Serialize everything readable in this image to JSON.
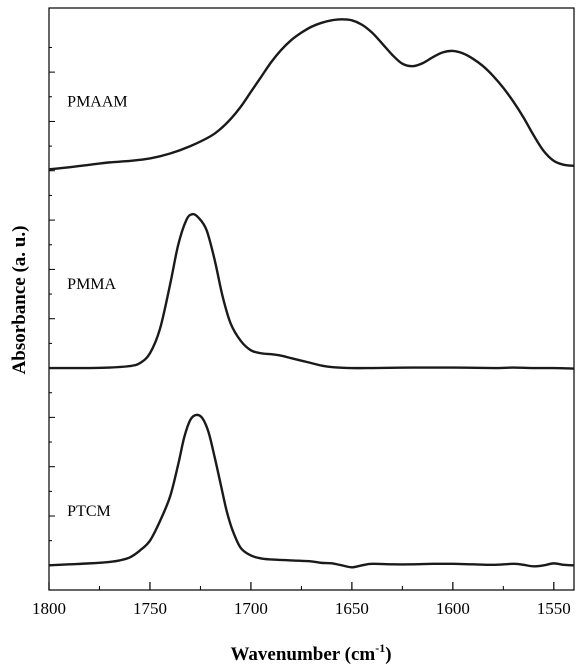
{
  "chart_data": {
    "type": "line",
    "title": "",
    "xlabel": "Wavenumber (cm",
    "xlabel_sup": "-1",
    "xlabel_suffix": ")",
    "ylabel": "Absorbance (a. u.)",
    "xlim": [
      1800,
      1540
    ],
    "x_reversed": true,
    "y_ticks_labeled": false,
    "grid": false,
    "legend": "none",
    "x_ticks": [
      1800,
      1750,
      1700,
      1650,
      1600,
      1550
    ],
    "x_tick_labels": [
      "1800",
      "1750",
      "1700",
      "1650",
      "1600",
      "1550"
    ],
    "line_color": "#1a1a1a",
    "series": [
      {
        "name": "PMAAM",
        "baseline": 0.8,
        "points": [
          [
            1800,
            0.803
          ],
          [
            1790,
            0.807
          ],
          [
            1780,
            0.812
          ],
          [
            1770,
            0.817
          ],
          [
            1760,
            0.82
          ],
          [
            1750,
            0.825
          ],
          [
            1740,
            0.835
          ],
          [
            1730,
            0.85
          ],
          [
            1720,
            0.87
          ],
          [
            1715,
            0.885
          ],
          [
            1710,
            0.905
          ],
          [
            1705,
            0.93
          ],
          [
            1700,
            0.96
          ],
          [
            1695,
            0.99
          ],
          [
            1690,
            1.02
          ],
          [
            1685,
            1.045
          ],
          [
            1680,
            1.065
          ],
          [
            1675,
            1.08
          ],
          [
            1670,
            1.092
          ],
          [
            1665,
            1.1
          ],
          [
            1660,
            1.105
          ],
          [
            1655,
            1.107
          ],
          [
            1650,
            1.105
          ],
          [
            1645,
            1.096
          ],
          [
            1640,
            1.08
          ],
          [
            1635,
            1.058
          ],
          [
            1630,
            1.035
          ],
          [
            1625,
            1.017
          ],
          [
            1620,
            1.012
          ],
          [
            1615,
            1.018
          ],
          [
            1610,
            1.03
          ],
          [
            1605,
            1.04
          ],
          [
            1600,
            1.043
          ],
          [
            1595,
            1.038
          ],
          [
            1590,
            1.027
          ],
          [
            1585,
            1.012
          ],
          [
            1580,
            0.992
          ],
          [
            1575,
            0.968
          ],
          [
            1570,
            0.94
          ],
          [
            1565,
            0.908
          ],
          [
            1560,
            0.872
          ],
          [
            1555,
            0.84
          ],
          [
            1550,
            0.82
          ],
          [
            1545,
            0.812
          ],
          [
            1540,
            0.81
          ]
        ]
      },
      {
        "name": "PMMA",
        "baseline": 0.4,
        "points": [
          [
            1800,
            0.4
          ],
          [
            1790,
            0.4
          ],
          [
            1780,
            0.4
          ],
          [
            1770,
            0.401
          ],
          [
            1760,
            0.404
          ],
          [
            1755,
            0.41
          ],
          [
            1750,
            0.43
          ],
          [
            1745,
            0.48
          ],
          [
            1740,
            0.57
          ],
          [
            1736,
            0.65
          ],
          [
            1732,
            0.7
          ],
          [
            1729,
            0.712
          ],
          [
            1726,
            0.705
          ],
          [
            1722,
            0.68
          ],
          [
            1718,
            0.62
          ],
          [
            1714,
            0.545
          ],
          [
            1710,
            0.49
          ],
          [
            1705,
            0.455
          ],
          [
            1700,
            0.436
          ],
          [
            1695,
            0.43
          ],
          [
            1690,
            0.428
          ],
          [
            1685,
            0.425
          ],
          [
            1680,
            0.42
          ],
          [
            1675,
            0.415
          ],
          [
            1670,
            0.41
          ],
          [
            1665,
            0.405
          ],
          [
            1660,
            0.402
          ],
          [
            1650,
            0.4
          ],
          [
            1640,
            0.4
          ],
          [
            1620,
            0.401
          ],
          [
            1600,
            0.401
          ],
          [
            1580,
            0.4
          ],
          [
            1570,
            0.401
          ],
          [
            1560,
            0.4
          ],
          [
            1550,
            0.4
          ],
          [
            1540,
            0.399
          ]
        ]
      },
      {
        "name": "PTCM",
        "baseline": 0.0,
        "points": [
          [
            1800,
            0.0
          ],
          [
            1790,
            0.002
          ],
          [
            1780,
            0.004
          ],
          [
            1770,
            0.007
          ],
          [
            1765,
            0.01
          ],
          [
            1760,
            0.016
          ],
          [
            1755,
            0.03
          ],
          [
            1750,
            0.05
          ],
          [
            1745,
            0.09
          ],
          [
            1740,
            0.14
          ],
          [
            1736,
            0.205
          ],
          [
            1733,
            0.26
          ],
          [
            1730,
            0.295
          ],
          [
            1727,
            0.305
          ],
          [
            1724,
            0.298
          ],
          [
            1721,
            0.27
          ],
          [
            1718,
            0.22
          ],
          [
            1715,
            0.165
          ],
          [
            1712,
            0.11
          ],
          [
            1709,
            0.07
          ],
          [
            1705,
            0.035
          ],
          [
            1700,
            0.02
          ],
          [
            1695,
            0.014
          ],
          [
            1690,
            0.012
          ],
          [
            1680,
            0.01
          ],
          [
            1670,
            0.008
          ],
          [
            1665,
            0.005
          ],
          [
            1660,
            0.004
          ],
          [
            1655,
            0.0
          ],
          [
            1650,
            -0.004
          ],
          [
            1645,
            0.0
          ],
          [
            1640,
            0.003
          ],
          [
            1630,
            0.002
          ],
          [
            1620,
            0.002
          ],
          [
            1610,
            0.003
          ],
          [
            1600,
            0.003
          ],
          [
            1590,
            0.002
          ],
          [
            1580,
            0.001
          ],
          [
            1570,
            0.003
          ],
          [
            1565,
            0.001
          ],
          [
            1560,
            -0.002
          ],
          [
            1555,
            0.0
          ],
          [
            1550,
            0.004
          ],
          [
            1545,
            0.001
          ],
          [
            1540,
            0.0
          ]
        ]
      }
    ]
  }
}
